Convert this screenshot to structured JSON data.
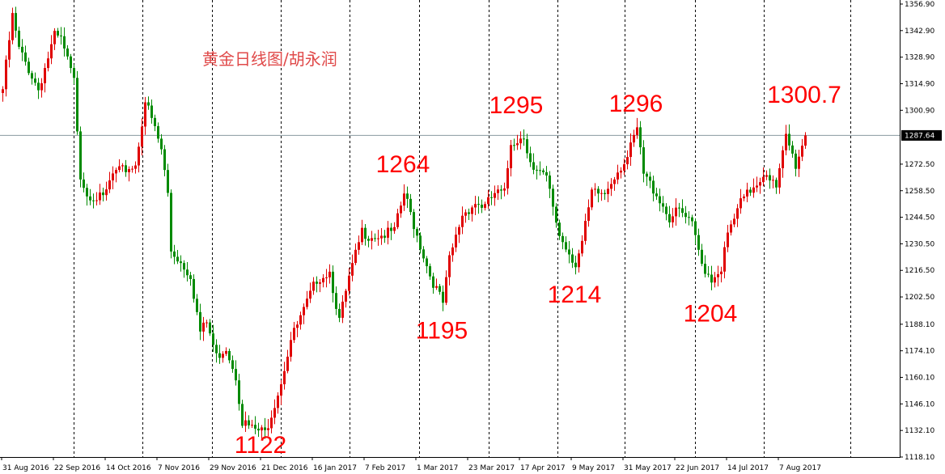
{
  "chart_data": {
    "type": "candlestick",
    "title": "黄金日线图/胡永润",
    "ylim": [
      1118.1,
      1356.9
    ],
    "y_ticks": [
      1356.9,
      1342.9,
      1328.9,
      1314.9,
      1300.9,
      1272.5,
      1258.5,
      1244.5,
      1230.5,
      1216.5,
      1202.5,
      1188.1,
      1174.1,
      1160.1,
      1146.1,
      1132.1,
      1118.1
    ],
    "current_price": 1287.64,
    "current_price_label": "1287.64",
    "x_labels": [
      "31 Aug 2016",
      "22 Sep 2016",
      "14 Oct 2016",
      "7 Nov 2016",
      "29 Nov 2016",
      "21 Dec 2016",
      "16 Jan 2017",
      "7 Feb 2017",
      "1 Mar 2017",
      "23 Mar 2017",
      "17 Apr 2017",
      "9 May 2017",
      "31 May 2017",
      "22 Jun 2017",
      "14 Jul 2017",
      "7 Aug 2017"
    ],
    "bars_per_label": 16,
    "grid": false,
    "colors": {
      "up": "#e00000",
      "down": "#008a00",
      "annotation": "#ff0000",
      "title": "#e04a4a",
      "price_line": "#8a9aa0"
    },
    "price_path": [
      [
        0,
        1312
      ],
      [
        3,
        1350.5
      ],
      [
        5,
        1333
      ],
      [
        11,
        1312
      ],
      [
        16,
        1340
      ],
      [
        18,
        1338
      ],
      [
        22,
        1316
      ],
      [
        24,
        1267
      ],
      [
        26,
        1257
      ],
      [
        31,
        1254
      ],
      [
        34,
        1267
      ],
      [
        41,
        1272
      ],
      [
        44,
        1306
      ],
      [
        47,
        1291
      ],
      [
        49,
        1280
      ],
      [
        51,
        1257
      ],
      [
        52,
        1227
      ],
      [
        54,
        1223
      ],
      [
        58,
        1214
      ],
      [
        61,
        1184
      ],
      [
        63,
        1189
      ],
      [
        66,
        1171
      ],
      [
        69,
        1176
      ],
      [
        72,
        1161
      ],
      [
        74,
        1137
      ],
      [
        77,
        1133
      ],
      [
        81,
        1131
      ],
      [
        83,
        1141
      ],
      [
        86,
        1158
      ],
      [
        89,
        1180
      ],
      [
        93,
        1195
      ],
      [
        97,
        1212
      ],
      [
        101,
        1216
      ],
      [
        104,
        1190
      ],
      [
        107,
        1212
      ],
      [
        111,
        1237
      ],
      [
        113,
        1235
      ],
      [
        117,
        1235
      ],
      [
        121,
        1237
      ],
      [
        124,
        1257
      ],
      [
        125,
        1252
      ],
      [
        128,
        1235
      ],
      [
        132,
        1214
      ],
      [
        136,
        1199
      ],
      [
        138,
        1222
      ],
      [
        142,
        1246
      ],
      [
        146,
        1252
      ],
      [
        149,
        1250
      ],
      [
        152,
        1257
      ],
      [
        155,
        1257
      ],
      [
        157,
        1284
      ],
      [
        161,
        1287
      ],
      [
        164,
        1269
      ],
      [
        168,
        1265
      ],
      [
        172,
        1235
      ],
      [
        174,
        1229
      ],
      [
        177,
        1220
      ],
      [
        179,
        1231
      ],
      [
        182,
        1257
      ],
      [
        186,
        1257
      ],
      [
        189,
        1267
      ],
      [
        193,
        1276
      ],
      [
        196,
        1291
      ],
      [
        198,
        1267
      ],
      [
        202,
        1257
      ],
      [
        206,
        1244
      ],
      [
        209,
        1248
      ],
      [
        213,
        1240
      ],
      [
        216,
        1220
      ],
      [
        219,
        1212
      ],
      [
        222,
        1218
      ],
      [
        224,
        1235
      ],
      [
        228,
        1252
      ],
      [
        232,
        1261
      ],
      [
        236,
        1269
      ],
      [
        239,
        1259
      ],
      [
        242,
        1287
      ],
      [
        245,
        1272
      ],
      [
        248,
        1287.64
      ]
    ],
    "annotations": [
      {
        "text": "1122",
        "price": 1122,
        "bar": 80
      },
      {
        "text": "1264",
        "price": 1264,
        "bar": 124
      },
      {
        "text": "1195",
        "price": 1195,
        "bar": 136
      },
      {
        "text": "1295",
        "price": 1295,
        "bar": 159
      },
      {
        "text": "1214",
        "price": 1214,
        "bar": 177
      },
      {
        "text": "1296",
        "price": 1296,
        "bar": 196
      },
      {
        "text": "1204",
        "price": 1204,
        "bar": 219
      },
      {
        "text": "1300.7",
        "price": 1300.7,
        "bar": 248
      }
    ]
  }
}
